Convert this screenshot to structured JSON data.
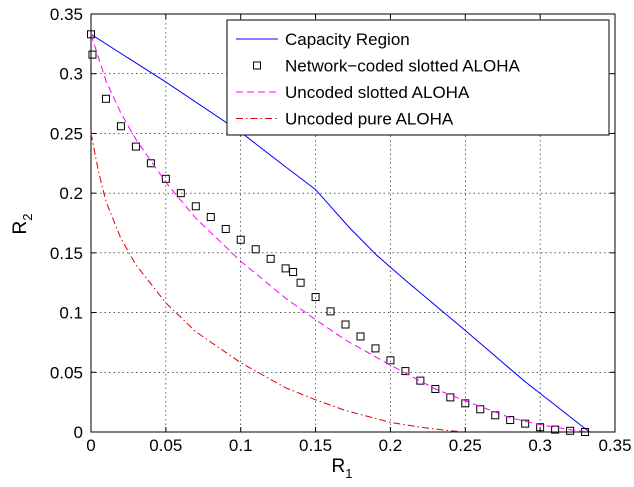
{
  "chart_data": {
    "type": "line",
    "xlabel": "R",
    "xlabel_sub": "1",
    "ylabel": "R",
    "ylabel_sub": "2",
    "xlim": [
      0,
      0.35
    ],
    "ylim": [
      0,
      0.35
    ],
    "xticks": [
      0,
      0.05,
      0.1,
      0.15,
      0.2,
      0.25,
      0.3,
      0.35
    ],
    "yticks": [
      0,
      0.05,
      0.1,
      0.15,
      0.2,
      0.25,
      0.3,
      0.35
    ],
    "xtick_labels": [
      "0",
      "0.05",
      "0.1",
      "0.15",
      "0.2",
      "0.25",
      "0.3",
      "0.35"
    ],
    "ytick_labels": [
      "0",
      "0.05",
      "0.1",
      "0.15",
      "0.2",
      "0.25",
      "0.3",
      "0.35"
    ],
    "grid": true,
    "legend_position": "top-right",
    "series": [
      {
        "name": "Capacity Region",
        "style": "solid",
        "marker": "none",
        "color": "#0000ff",
        "x": [
          0,
          0.05,
          0.1,
          0.13,
          0.15,
          0.172,
          0.19,
          0.21,
          0.25,
          0.29,
          0.333
        ],
        "y": [
          0.333,
          0.293,
          0.251,
          0.222,
          0.203,
          0.172,
          0.149,
          0.127,
          0.085,
          0.042,
          0
        ]
      },
      {
        "name": "Network−coded slotted ALOHA",
        "style": "none",
        "marker": "square",
        "color": "#000000",
        "x": [
          0,
          0.001,
          0.01,
          0.02,
          0.03,
          0.04,
          0.05,
          0.06,
          0.07,
          0.08,
          0.09,
          0.1,
          0.11,
          0.12,
          0.13,
          0.135,
          0.14,
          0.15,
          0.16,
          0.17,
          0.18,
          0.19,
          0.2,
          0.21,
          0.22,
          0.23,
          0.24,
          0.25,
          0.26,
          0.27,
          0.28,
          0.29,
          0.3,
          0.31,
          0.32,
          0.33
        ],
        "y": [
          0.333,
          0.316,
          0.279,
          0.256,
          0.239,
          0.225,
          0.212,
          0.2,
          0.189,
          0.18,
          0.17,
          0.161,
          0.153,
          0.145,
          0.137,
          0.134,
          0.125,
          0.113,
          0.101,
          0.09,
          0.08,
          0.07,
          0.06,
          0.051,
          0.043,
          0.036,
          0.029,
          0.024,
          0.019,
          0.014,
          0.01,
          0.007,
          0.004,
          0.002,
          0.001,
          0
        ]
      },
      {
        "name": "Uncoded slotted ALOHA",
        "style": "dashed",
        "marker": "none",
        "color": "#ff00ff",
        "x": [
          0,
          0.01,
          0.02,
          0.03,
          0.05,
          0.07,
          0.1,
          0.13,
          0.15,
          0.17,
          0.2,
          0.23,
          0.25,
          0.28,
          0.3,
          0.32,
          0.333
        ],
        "y": [
          0.333,
          0.294,
          0.267,
          0.245,
          0.209,
          0.179,
          0.143,
          0.112,
          0.094,
          0.077,
          0.056,
          0.036,
          0.026,
          0.012,
          0.006,
          0.002,
          0
        ]
      },
      {
        "name": "Uncoded pure ALOHA",
        "style": "dashdot",
        "marker": "none",
        "color": "#dd0000",
        "x": [
          0,
          0.005,
          0.01,
          0.02,
          0.03,
          0.05,
          0.07,
          0.1,
          0.13,
          0.15,
          0.17,
          0.2,
          0.22,
          0.24,
          0.25
        ],
        "y": [
          0.25,
          0.218,
          0.193,
          0.162,
          0.14,
          0.108,
          0.084,
          0.058,
          0.037,
          0.027,
          0.018,
          0.008,
          0.004,
          0.001,
          0
        ]
      }
    ]
  }
}
